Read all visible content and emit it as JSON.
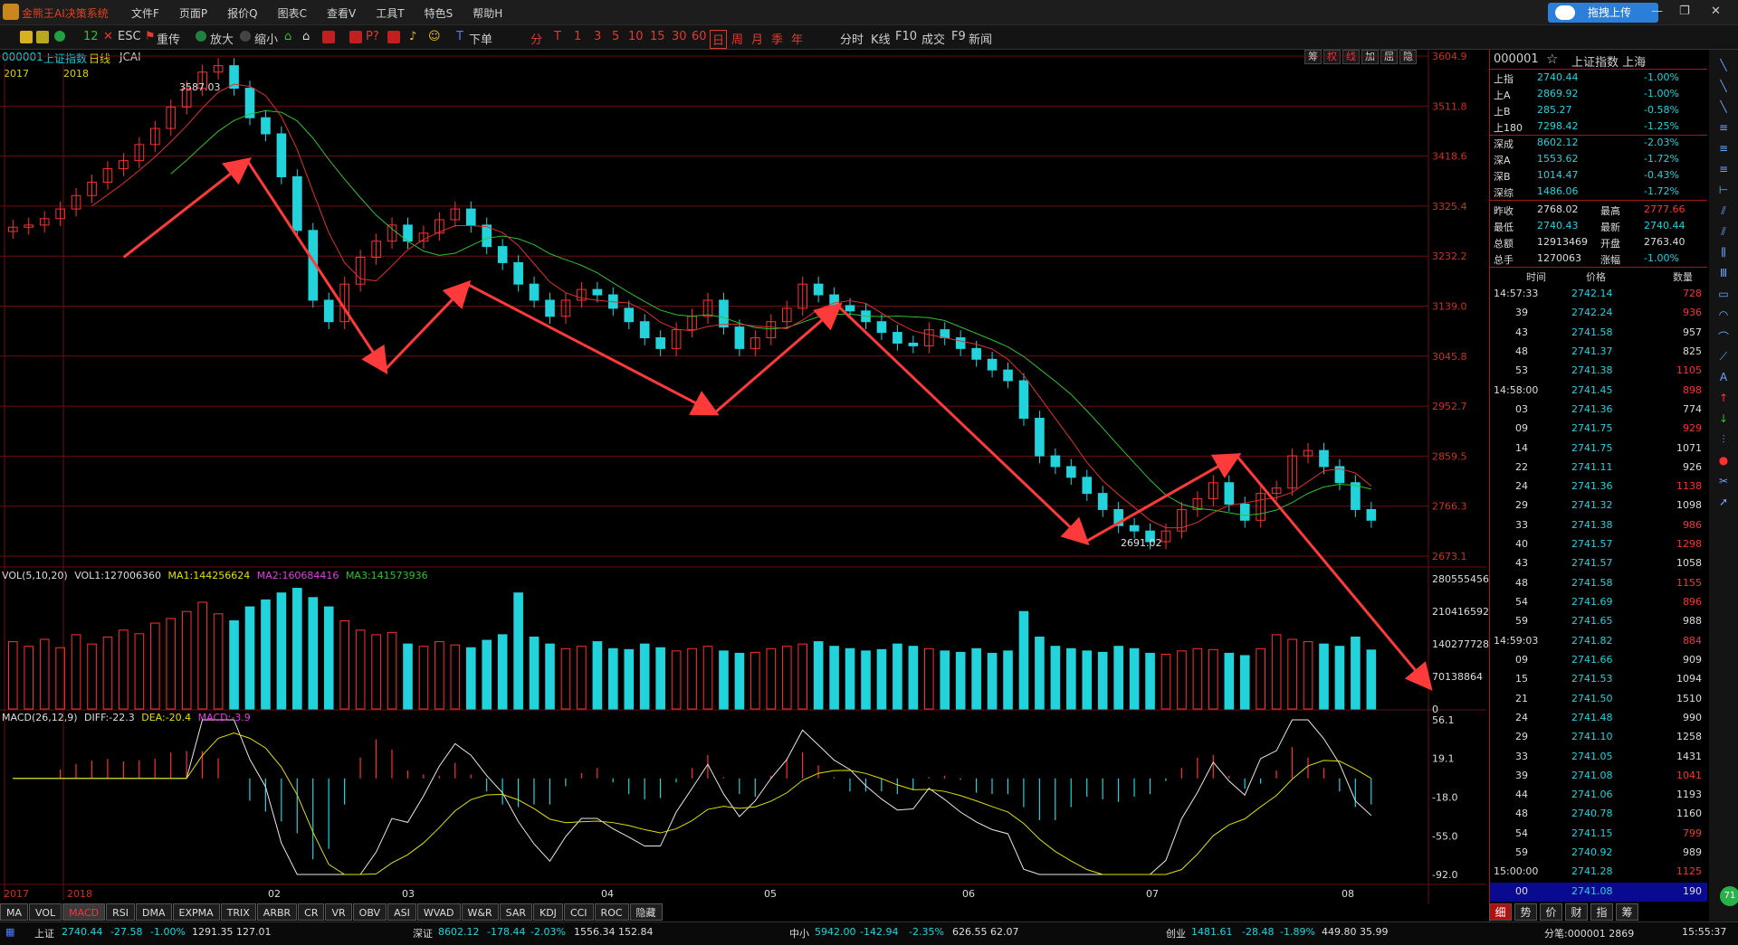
{
  "window": {
    "title": "金熊王AI决策系统",
    "menu": [
      "文件F",
      "页面P",
      "报价Q",
      "图表C",
      "查看V",
      "工具T",
      "特色S",
      "帮助H"
    ],
    "upload_button": "拖拽上传",
    "controls": [
      "—",
      "❐",
      "✕"
    ]
  },
  "toolbar": {
    "esc": "ESC",
    "reset": "重传",
    "zoom_in": "放大",
    "zoom_out": "缩小",
    "order": "下单",
    "periods": [
      "分",
      "T",
      "1",
      "3",
      "5",
      "10",
      "15",
      "30",
      "60",
      "日",
      "周",
      "月",
      "季",
      "年"
    ],
    "active_period": "日",
    "right": [
      "分时",
      "K线",
      "F10",
      "成交",
      "F9",
      "新闻"
    ]
  },
  "chart_header": {
    "code": "000001",
    "name": "上证指数",
    "period": "日线",
    "indicator": "JCAI",
    "buttons": [
      "筹",
      "权",
      "线",
      "加",
      "屈",
      "隐"
    ],
    "years": [
      "2017",
      "2018"
    ]
  },
  "chart_data": [
    {
      "type": "candlestick",
      "title": "000001 上证指数 日线",
      "price_axis_ticks": [
        3604.9,
        3511.8,
        3418.6,
        3325.4,
        3232.2,
        3139.0,
        3045.8,
        2952.7,
        2859.5,
        2766.3,
        2673.1
      ],
      "ylim": [
        2673.1,
        3604.9
      ],
      "annotations": [
        {
          "text": "3587.03"
        },
        {
          "text": "2691.02"
        }
      ],
      "x_tick_labels": [
        "2017",
        "2018",
        "02",
        "03",
        "04",
        "05",
        "06",
        "07",
        "08"
      ],
      "path_points": [
        [
          0.09,
          3230
        ],
        [
          0.18,
          3410
        ],
        [
          0.28,
          3020
        ],
        [
          0.34,
          3180
        ],
        [
          0.52,
          2940
        ],
        [
          0.61,
          3139
        ],
        [
          0.79,
          2700
        ],
        [
          0.9,
          2860
        ],
        [
          1.04,
          2430
        ]
      ],
      "series": [
        {
          "name": "K",
          "values": [
            3286,
            3290,
            3302,
            3320,
            3345,
            3370,
            3395,
            3410,
            3440,
            3470,
            3510,
            3545,
            3575,
            3587,
            3545,
            3490,
            3460,
            3380,
            3280,
            3150,
            3110,
            3180,
            3230,
            3260,
            3290,
            3260,
            3275,
            3300,
            3320,
            3290,
            3250,
            3220,
            3180,
            3150,
            3120,
            3150,
            3170,
            3160,
            3135,
            3110,
            3080,
            3060,
            3095,
            3120,
            3150,
            3100,
            3060,
            3080,
            3110,
            3135,
            3180,
            3160,
            3140,
            3130,
            3110,
            3090,
            3070,
            3065,
            3095,
            3080,
            3060,
            3040,
            3020,
            3000,
            2930,
            2860,
            2840,
            2820,
            2790,
            2760,
            2730,
            2720,
            2700,
            2720,
            2760,
            2780,
            2810,
            2770,
            2740,
            2790,
            2800,
            2860,
            2870,
            2840,
            2810,
            2760,
            2740
          ]
        }
      ]
    },
    {
      "type": "bar",
      "title": "VOL(5,10,20)",
      "legend": [
        "VOL1:127006360",
        "MA1:144256624",
        "MA2:160684416",
        "MA3:141573936"
      ],
      "ticks": [
        280555456,
        210416592,
        140277728,
        70138864,
        0
      ],
      "tick_labels": [
        "280555456",
        "210416592",
        "140277728",
        "70138864",
        "0"
      ],
      "values": [
        1.45,
        1.35,
        1.5,
        1.32,
        1.6,
        1.4,
        1.55,
        1.7,
        1.62,
        1.85,
        1.95,
        2.1,
        2.3,
        2.05,
        1.9,
        2.2,
        2.35,
        2.5,
        2.6,
        2.4,
        2.2,
        1.9,
        1.7,
        1.6,
        1.65,
        1.4,
        1.35,
        1.45,
        1.38,
        1.32,
        1.48,
        1.6,
        2.5,
        1.55,
        1.4,
        1.3,
        1.35,
        1.45,
        1.3,
        1.28,
        1.4,
        1.32,
        1.25,
        1.3,
        1.35,
        1.25,
        1.2,
        1.22,
        1.3,
        1.35,
        1.4,
        1.45,
        1.35,
        1.3,
        1.25,
        1.28,
        1.4,
        1.35,
        1.3,
        1.25,
        1.22,
        1.3,
        1.2,
        1.25,
        2.1,
        1.55,
        1.35,
        1.3,
        1.25,
        1.22,
        1.35,
        1.3,
        1.2,
        1.18,
        1.25,
        1.3,
        1.28,
        1.2,
        1.15,
        1.3,
        1.6,
        1.5,
        1.45,
        1.4,
        1.35,
        1.55,
        1.27
      ]
    },
    {
      "type": "bar",
      "title": "MACD(26,12,9)",
      "legend": [
        "DIFF:-22.3",
        "DEA:-20.4",
        "MACD:-3.9"
      ],
      "ticks": [
        56.1,
        19.1,
        -18.0,
        -55.0,
        -92.0
      ],
      "tick_labels": [
        "56.1",
        "19.1",
        "-18.0",
        "-55.0",
        "-92.0"
      ],
      "diff": [
        -22.3
      ],
      "dea": [
        -20.4
      ],
      "macd": [
        -3.9
      ]
    }
  ],
  "indicator_tabs": [
    "MA",
    "VOL",
    "MACD",
    "RSI",
    "DMA",
    "EXPMA",
    "TRIX",
    "ARBR",
    "CR",
    "VR",
    "OBV",
    "ASI",
    "WVAD",
    "W&R",
    "SAR",
    "KDJ",
    "CCI",
    "ROC",
    "隐藏"
  ],
  "active_indicator_tab": "MACD",
  "status": {
    "sh": {
      "label": "上证",
      "value": "2740.44",
      "chg": "-27.58",
      "pct": "-1.00%",
      "amt": "1291.35 127.01"
    },
    "sz": {
      "label": "深证",
      "value": "8602.12",
      "chg": "-178.44",
      "pct": "-2.03%",
      "amt": "1556.34 152.84"
    },
    "zx": {
      "label": "中小",
      "value": "5942.00",
      "chg": "-142.94",
      "pct": "-2.35%",
      "amt": "626.55 62.07"
    },
    "cy": {
      "label": "创业",
      "value": "1481.61",
      "chg": "-28.48",
      "pct": "-1.89%",
      "amt": "449.80 35.99"
    },
    "ticker": "分笔:000001 2869",
    "time": "15:55:37"
  },
  "quote_panel": {
    "code": "000001",
    "name": "上证指数 上海",
    "indices": [
      {
        "name": "上指",
        "value": "2740.44",
        "pct": "-1.00%"
      },
      {
        "name": "上A",
        "value": "2869.92",
        "pct": "-1.00%"
      },
      {
        "name": "上B",
        "value": "285.27",
        "pct": "-0.58%"
      },
      {
        "name": "上180",
        "value": "7298.42",
        "pct": "-1.25%"
      },
      {
        "name": "深成",
        "value": "8602.12",
        "pct": "-2.03%"
      },
      {
        "name": "深A",
        "value": "1553.62",
        "pct": "-1.72%"
      },
      {
        "name": "深B",
        "value": "1014.47",
        "pct": "-0.43%"
      },
      {
        "name": "深综",
        "value": "1486.06",
        "pct": "-1.72%"
      }
    ],
    "stats": [
      {
        "l1": "昨收",
        "v1": "2768.02",
        "l2": "最高",
        "v2": "2777.66"
      },
      {
        "l1": "最低",
        "v1": "2740.43",
        "l2": "最新",
        "v2": "2740.44"
      },
      {
        "l1": "总额",
        "v1": "12913469",
        "l2": "开盘",
        "v2": "2763.40"
      },
      {
        "l1": "总手",
        "v1": "1270063",
        "l2": "涨幅",
        "v2": "-1.00%"
      }
    ],
    "table_headers": [
      "时间",
      "价格",
      "数量"
    ],
    "ticks": [
      {
        "t": "14:57:33",
        "p": "2742.14",
        "q": "728",
        "r": true
      },
      {
        "t": "39",
        "p": "2742.24",
        "q": "936",
        "r": true
      },
      {
        "t": "43",
        "p": "2741.58",
        "q": "957",
        "r": false
      },
      {
        "t": "48",
        "p": "2741.37",
        "q": "825",
        "r": false
      },
      {
        "t": "53",
        "p": "2741.38",
        "q": "1105",
        "r": true
      },
      {
        "t": "14:58:00",
        "p": "2741.45",
        "q": "898",
        "r": true
      },
      {
        "t": "03",
        "p": "2741.36",
        "q": "774",
        "r": false
      },
      {
        "t": "09",
        "p": "2741.75",
        "q": "929",
        "r": true
      },
      {
        "t": "14",
        "p": "2741.75",
        "q": "1071",
        "r": false
      },
      {
        "t": "22",
        "p": "2741.11",
        "q": "926",
        "r": false
      },
      {
        "t": "24",
        "p": "2741.36",
        "q": "1138",
        "r": true
      },
      {
        "t": "29",
        "p": "2741.32",
        "q": "1098",
        "r": false
      },
      {
        "t": "33",
        "p": "2741.38",
        "q": "986",
        "r": true
      },
      {
        "t": "40",
        "p": "2741.57",
        "q": "1298",
        "r": true
      },
      {
        "t": "43",
        "p": "2741.57",
        "q": "1058",
        "r": false
      },
      {
        "t": "48",
        "p": "2741.58",
        "q": "1155",
        "r": true
      },
      {
        "t": "54",
        "p": "2741.69",
        "q": "896",
        "r": true
      },
      {
        "t": "59",
        "p": "2741.65",
        "q": "988",
        "r": false
      },
      {
        "t": "14:59:03",
        "p": "2741.82",
        "q": "884",
        "r": true
      },
      {
        "t": "09",
        "p": "2741.66",
        "q": "909",
        "r": false
      },
      {
        "t": "15",
        "p": "2741.53",
        "q": "1094",
        "r": false
      },
      {
        "t": "21",
        "p": "2741.50",
        "q": "1510",
        "r": false
      },
      {
        "t": "24",
        "p": "2741.48",
        "q": "990",
        "r": false
      },
      {
        "t": "29",
        "p": "2741.10",
        "q": "1258",
        "r": false
      },
      {
        "t": "33",
        "p": "2741.05",
        "q": "1431",
        "r": false
      },
      {
        "t": "39",
        "p": "2741.08",
        "q": "1041",
        "r": true
      },
      {
        "t": "44",
        "p": "2741.06",
        "q": "1193",
        "r": false
      },
      {
        "t": "48",
        "p": "2740.78",
        "q": "1160",
        "r": false
      },
      {
        "t": "54",
        "p": "2741.15",
        "q": "799",
        "r": true
      },
      {
        "t": "59",
        "p": "2740.92",
        "q": "989",
        "r": false
      },
      {
        "t": "15:00:00",
        "p": "2741.28",
        "q": "1125",
        "r": true
      },
      {
        "t": "00",
        "p": "2741.08",
        "q": "190",
        "r": false
      }
    ],
    "tabs": [
      "细",
      "势",
      "价",
      "财",
      "指",
      "筹"
    ],
    "active_tab": "细"
  },
  "colors": {
    "up": "#ff3030",
    "down": "#22d3dc",
    "ma_green": "#30c030",
    "ma_yellow": "#e0e000",
    "grid": "#6a1010",
    "arrow": "#ff3a3a"
  },
  "extra": {
    "badge": "71"
  }
}
